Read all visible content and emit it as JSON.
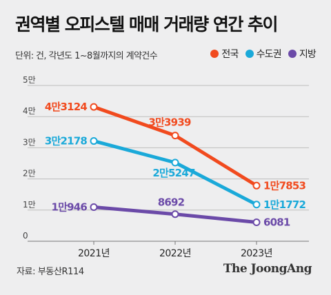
{
  "title": "권역별 오피스텔 매매 거래량 연간 추이",
  "unit_note": "단위: 건, 각년도 1~8월까지의 계약건수",
  "legend": [
    {
      "label": "전국",
      "color": "#f14a1e"
    },
    {
      "label": "수도권",
      "color": "#1aa9d9"
    },
    {
      "label": "지방",
      "color": "#6b4aa8"
    }
  ],
  "source": "자료: 부동산R114",
  "brand": "The JoongAng",
  "chart_data": {
    "type": "line",
    "title": "권역별 오피스텔 매매 거래량 연간 추이",
    "categories": [
      "2021년",
      "2022년",
      "2023년"
    ],
    "y_ticks": [
      {
        "value": 0,
        "label": "0"
      },
      {
        "value": 10000,
        "label": "1만"
      },
      {
        "value": 20000,
        "label": "2만"
      },
      {
        "value": 30000,
        "label": "3만"
      },
      {
        "value": 40000,
        "label": "4만"
      },
      {
        "value": 50000,
        "label": "5만"
      }
    ],
    "ylim": [
      0,
      50000
    ],
    "grid": true,
    "series": [
      {
        "name": "전국",
        "color": "#f14a1e",
        "values": [
          43124,
          33939,
          17853
        ],
        "labels": [
          "4만3124",
          "3만3939",
          "1만7853"
        ]
      },
      {
        "name": "수도권",
        "color": "#1aa9d9",
        "values": [
          32178,
          25247,
          11772
        ],
        "labels": [
          "3만2178",
          "2만5247",
          "1만1772"
        ]
      },
      {
        "name": "지방",
        "color": "#6b4aa8",
        "values": [
          10946,
          8692,
          6081
        ],
        "labels": [
          "1만946",
          "8692",
          "6081"
        ]
      }
    ]
  }
}
